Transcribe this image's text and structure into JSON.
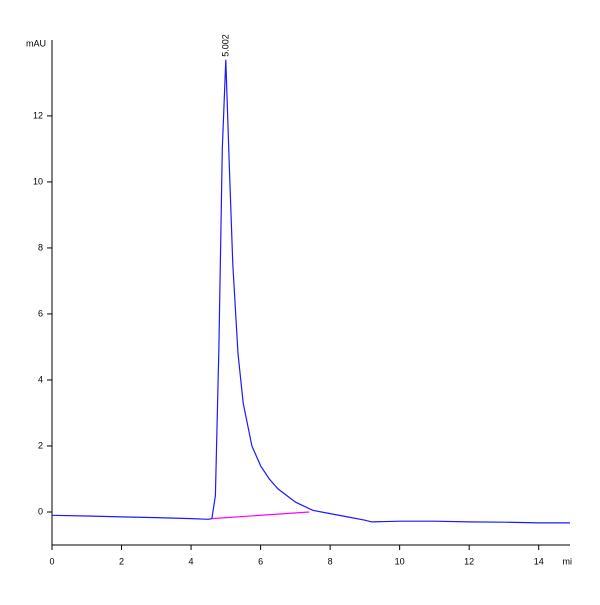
{
  "chart_data": {
    "type": "line",
    "y_label": "mAU",
    "x_label": "mi",
    "xlim": [
      0,
      14.9
    ],
    "ylim": [
      -1,
      14.3
    ],
    "xticks": [
      0,
      2,
      4,
      6,
      8,
      10,
      12,
      14
    ],
    "yticks": [
      0,
      2,
      4,
      6,
      8,
      10,
      12
    ],
    "series": [
      {
        "color": "#1a1aff",
        "x": [
          0,
          1,
          2,
          3,
          4,
          4.5,
          4.6,
          4.7,
          4.8,
          4.9,
          5.0,
          5.1,
          5.2,
          5.35,
          5.5,
          5.75,
          6,
          6.25,
          6.5,
          7,
          7.5,
          8,
          8.5,
          9,
          9.2,
          10,
          11,
          12,
          13,
          14,
          14.9
        ],
        "values": [
          -0.1,
          -0.12,
          -0.15,
          -0.17,
          -0.2,
          -0.22,
          -0.2,
          0.5,
          5,
          11,
          13.7,
          10.5,
          7.5,
          4.8,
          3.3,
          2.0,
          1.4,
          1.0,
          0.7,
          0.3,
          0.05,
          -0.05,
          -0.15,
          -0.25,
          -0.3,
          -0.28,
          -0.28,
          -0.3,
          -0.31,
          -0.33,
          -0.33
        ]
      },
      {
        "color": "#ff00ff",
        "x": [
          4.6,
          7.4
        ],
        "values": [
          -0.2,
          0.0
        ]
      }
    ],
    "annotations": [
      {
        "text": "5.002",
        "x": 5.002,
        "y": 13.7
      }
    ]
  }
}
